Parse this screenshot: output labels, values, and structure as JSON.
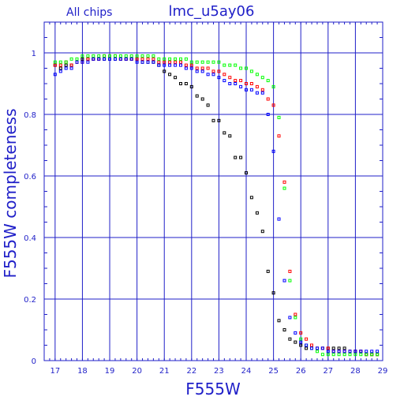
{
  "chart_data": {
    "type": "scatter",
    "header_left": "All chips",
    "title": "lmc_u5ay06",
    "xlabel": "F555W",
    "ylabel": "F555W completeness",
    "xlim": [
      16.6,
      29
    ],
    "ylim": [
      0,
      1.1
    ],
    "xticks": [
      17,
      18,
      19,
      20,
      21,
      22,
      23,
      24,
      25,
      26,
      27,
      28,
      29
    ],
    "yticks": [
      0,
      0.2,
      0.4,
      0.6,
      0.8,
      1
    ],
    "ytick_labels": [
      "0",
      "0.2",
      "0.4",
      "0.6",
      "0.8",
      "1"
    ],
    "grid": true,
    "series": [
      {
        "color": "#000000",
        "x": [
          17.0,
          17.2,
          17.4,
          17.6,
          17.8,
          18.0,
          18.2,
          18.4,
          18.6,
          18.8,
          19.0,
          19.2,
          19.4,
          19.6,
          19.8,
          20.0,
          20.2,
          20.4,
          20.6,
          20.8,
          21.0,
          21.2,
          21.4,
          21.6,
          21.8,
          22.0,
          22.2,
          22.4,
          22.6,
          22.8,
          23.0,
          23.2,
          23.4,
          23.6,
          23.8,
          24.0,
          24.2,
          24.4,
          24.6,
          24.8,
          25.0,
          25.2,
          25.4,
          25.6,
          25.8,
          26.0,
          26.2,
          26.4,
          26.6,
          26.8,
          27.0,
          27.2,
          27.4,
          27.6,
          27.8,
          28.0,
          28.2,
          28.4,
          28.6,
          28.8
        ],
        "y": [
          0.96,
          0.95,
          0.96,
          0.96,
          0.97,
          0.98,
          0.98,
          0.98,
          0.98,
          0.98,
          0.98,
          0.98,
          0.98,
          0.98,
          0.98,
          0.98,
          0.97,
          0.97,
          0.97,
          0.96,
          0.94,
          0.93,
          0.92,
          0.9,
          0.9,
          0.89,
          0.86,
          0.85,
          0.83,
          0.78,
          0.78,
          0.74,
          0.73,
          0.66,
          0.66,
          0.61,
          0.53,
          0.48,
          0.42,
          0.29,
          0.22,
          0.13,
          0.1,
          0.07,
          0.06,
          0.05,
          0.04,
          0.04,
          0.04,
          0.04,
          0.04,
          0.04,
          0.04,
          0.04,
          0.03,
          0.03,
          0.03,
          0.02,
          0.02,
          0.02
        ]
      },
      {
        "color": "#ff0000",
        "x": [
          17.0,
          17.2,
          17.4,
          17.6,
          17.8,
          18.0,
          18.2,
          18.4,
          18.6,
          18.8,
          19.0,
          19.2,
          19.4,
          19.6,
          19.8,
          20.0,
          20.2,
          20.4,
          20.6,
          20.8,
          21.0,
          21.2,
          21.4,
          21.6,
          21.8,
          22.0,
          22.2,
          22.4,
          22.6,
          22.8,
          23.0,
          23.2,
          23.4,
          23.6,
          23.8,
          24.0,
          24.2,
          24.4,
          24.6,
          24.8,
          25.0,
          25.2,
          25.4,
          25.6,
          25.8,
          26.0,
          26.2,
          26.4,
          26.6,
          26.8,
          27.0,
          27.2,
          27.4,
          27.6,
          27.8,
          28.0,
          28.2,
          28.4,
          28.6,
          28.8
        ],
        "y": [
          0.96,
          0.96,
          0.97,
          0.96,
          0.97,
          0.97,
          0.98,
          0.98,
          0.98,
          0.99,
          0.99,
          0.99,
          0.98,
          0.98,
          0.98,
          0.98,
          0.98,
          0.98,
          0.98,
          0.97,
          0.97,
          0.97,
          0.97,
          0.97,
          0.96,
          0.96,
          0.95,
          0.95,
          0.95,
          0.94,
          0.94,
          0.93,
          0.92,
          0.91,
          0.91,
          0.9,
          0.9,
          0.89,
          0.88,
          0.85,
          0.83,
          0.73,
          0.58,
          0.29,
          0.15,
          0.09,
          0.07,
          0.05,
          0.04,
          0.04,
          0.04,
          0.03,
          0.03,
          0.03,
          0.03,
          0.03,
          0.03,
          0.02,
          0.02,
          0.02
        ]
      },
      {
        "color": "#00ff00",
        "x": [
          17.0,
          17.2,
          17.4,
          17.6,
          17.8,
          18.0,
          18.2,
          18.4,
          18.6,
          18.8,
          19.0,
          19.2,
          19.4,
          19.6,
          19.8,
          20.0,
          20.2,
          20.4,
          20.6,
          20.8,
          21.0,
          21.2,
          21.4,
          21.6,
          21.8,
          22.0,
          22.2,
          22.4,
          22.6,
          22.8,
          23.0,
          23.2,
          23.4,
          23.6,
          23.8,
          24.0,
          24.2,
          24.4,
          24.6,
          24.8,
          25.0,
          25.2,
          25.4,
          25.6,
          25.8,
          26.0,
          26.2,
          26.4,
          26.6,
          26.8,
          27.0,
          27.2,
          27.4,
          27.6,
          27.8,
          28.0,
          28.2,
          28.4,
          28.6,
          28.8
        ],
        "y": [
          0.97,
          0.97,
          0.97,
          0.98,
          0.98,
          0.99,
          0.99,
          0.99,
          0.99,
          0.99,
          0.99,
          0.99,
          0.99,
          0.99,
          0.99,
          0.99,
          0.99,
          0.99,
          0.99,
          0.98,
          0.98,
          0.98,
          0.98,
          0.98,
          0.98,
          0.97,
          0.97,
          0.97,
          0.97,
          0.97,
          0.97,
          0.96,
          0.96,
          0.96,
          0.95,
          0.95,
          0.94,
          0.93,
          0.92,
          0.91,
          0.89,
          0.79,
          0.56,
          0.26,
          0.14,
          0.07,
          0.05,
          0.04,
          0.03,
          0.02,
          0.02,
          0.02,
          0.02,
          0.02,
          0.02,
          0.02,
          0.02,
          0.02,
          0.02,
          0.02
        ]
      },
      {
        "color": "#0000ff",
        "x": [
          17.0,
          17.2,
          17.4,
          17.6,
          17.8,
          18.0,
          18.2,
          18.4,
          18.6,
          18.8,
          19.0,
          19.2,
          19.4,
          19.6,
          19.8,
          20.0,
          20.2,
          20.4,
          20.6,
          20.8,
          21.0,
          21.2,
          21.4,
          21.6,
          21.8,
          22.0,
          22.2,
          22.4,
          22.6,
          22.8,
          23.0,
          23.2,
          23.4,
          23.6,
          23.8,
          24.0,
          24.2,
          24.4,
          24.6,
          24.8,
          25.0,
          25.2,
          25.4,
          25.6,
          25.8,
          26.0,
          26.2,
          26.4,
          26.6,
          26.8,
          27.0,
          27.2,
          27.4,
          27.6,
          27.8,
          28.0,
          28.2,
          28.4,
          28.6,
          28.8
        ],
        "y": [
          0.93,
          0.94,
          0.95,
          0.95,
          0.97,
          0.97,
          0.97,
          0.98,
          0.98,
          0.98,
          0.98,
          0.98,
          0.98,
          0.98,
          0.98,
          0.97,
          0.97,
          0.97,
          0.97,
          0.96,
          0.96,
          0.96,
          0.96,
          0.96,
          0.95,
          0.95,
          0.94,
          0.94,
          0.93,
          0.93,
          0.92,
          0.91,
          0.9,
          0.9,
          0.89,
          0.88,
          0.88,
          0.87,
          0.87,
          0.8,
          0.68,
          0.46,
          0.26,
          0.14,
          0.09,
          0.06,
          0.05,
          0.04,
          0.04,
          0.04,
          0.03,
          0.03,
          0.03,
          0.03,
          0.03,
          0.03,
          0.03,
          0.03,
          0.03,
          0.03
        ]
      }
    ]
  }
}
